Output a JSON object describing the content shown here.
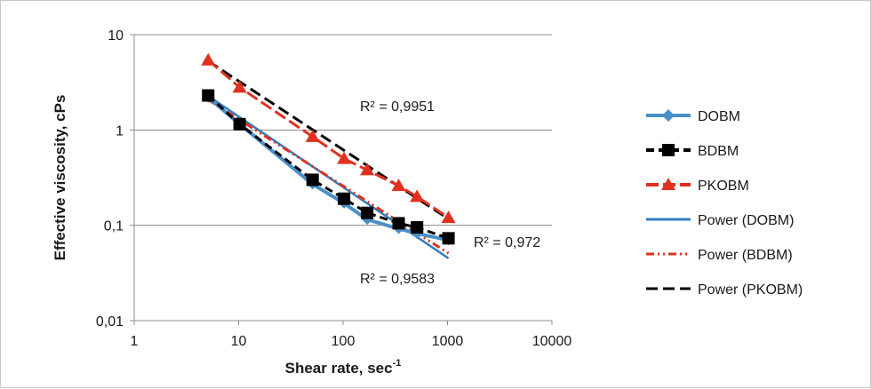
{
  "chart_data": {
    "type": "scatter",
    "title": "",
    "xlabel": "Shear rate, sec",
    "xlabel_superscript": "-1",
    "ylabel": "Effective viscosity, cPs",
    "x_scale": "log",
    "y_scale": "log",
    "xlim": [
      1,
      10000
    ],
    "ylim": [
      0.01,
      10
    ],
    "x_tick_labels": [
      "1",
      "10",
      "100",
      "1000",
      "10000"
    ],
    "y_tick_labels": [
      "10",
      "1",
      "0,1",
      "0,01"
    ],
    "grid": "horizontal major",
    "legend_position": "right",
    "series": [
      {
        "name": "DOBM",
        "color": "#4a90c8",
        "marker": "diamond",
        "x": [
          5.11,
          10.22,
          51.1,
          102.2,
          170.3,
          340.6,
          510.9,
          1021.8
        ],
        "y": [
          2.2,
          1.15,
          0.27,
          0.17,
          0.115,
          0.092,
          0.082,
          0.07
        ]
      },
      {
        "name": "BDBM",
        "color": "#000000",
        "marker": "square",
        "x": [
          5.11,
          10.22,
          51.1,
          102.2,
          170.3,
          340.6,
          510.9,
          1021.8
        ],
        "y": [
          2.3,
          1.15,
          0.3,
          0.19,
          0.135,
          0.105,
          0.095,
          0.073
        ]
      },
      {
        "name": "PKOBM",
        "color": "#e03020",
        "marker": "triangle",
        "x": [
          5.11,
          10.22,
          51.1,
          102.2,
          170.3,
          340.6,
          510.9,
          1021.8
        ],
        "y": [
          5.4,
          2.8,
          0.85,
          0.5,
          0.38,
          0.26,
          0.2,
          0.12
        ]
      }
    ],
    "trendlines": [
      {
        "name": "Power (DOBM)",
        "color": "#2f7fc0",
        "style": "solid",
        "a": 7.6,
        "b": -0.74,
        "x_range": [
          5.11,
          1021.8
        ]
      },
      {
        "name": "Power (BDBM)",
        "color": "#e03020",
        "style": "dash-dot-dot",
        "a": 6.5,
        "b": -0.7,
        "x_range": [
          5.11,
          1021.8
        ]
      },
      {
        "name": "Power (PKOBM)",
        "color": "#000000",
        "style": "long-dash",
        "a": 17.1,
        "b": -0.72,
        "x_range": [
          5.11,
          1021.8
        ]
      }
    ],
    "annotations": [
      "R² = 0,9951",
      "R² = 0,972",
      "R² = 0,9583"
    ]
  }
}
